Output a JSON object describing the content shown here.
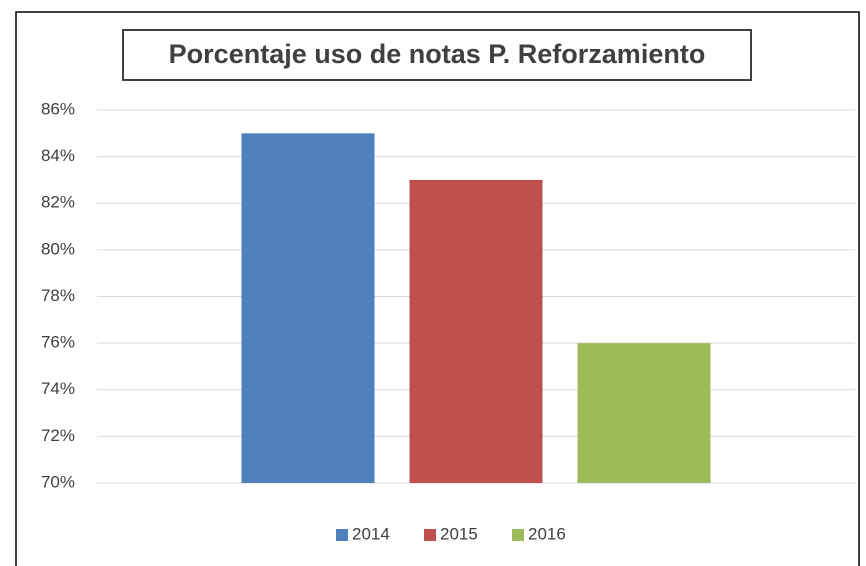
{
  "chart_data": {
    "type": "bar",
    "title": "Porcentaje uso de notas P. Reforzamiento",
    "categories": [
      null
    ],
    "series": [
      {
        "name": "2014",
        "color": "#4f81bd",
        "values": [
          85
        ]
      },
      {
        "name": "2015",
        "color": "#c0504d",
        "values": [
          83
        ]
      },
      {
        "name": "2016",
        "color": "#9bbb59",
        "values": [
          76
        ]
      }
    ],
    "ylim": [
      70,
      86
    ],
    "yticks": [
      {
        "value": 70,
        "label": "70%"
      },
      {
        "value": 72,
        "label": "72%"
      },
      {
        "value": 74,
        "label": "74%"
      },
      {
        "value": 76,
        "label": "76%"
      },
      {
        "value": 78,
        "label": "78%"
      },
      {
        "value": 80,
        "label": "80%"
      },
      {
        "value": 82,
        "label": "82%"
      },
      {
        "value": 84,
        "label": "84%"
      },
      {
        "value": 86,
        "label": "86%"
      }
    ],
    "grid": true,
    "legend": "bottom"
  }
}
